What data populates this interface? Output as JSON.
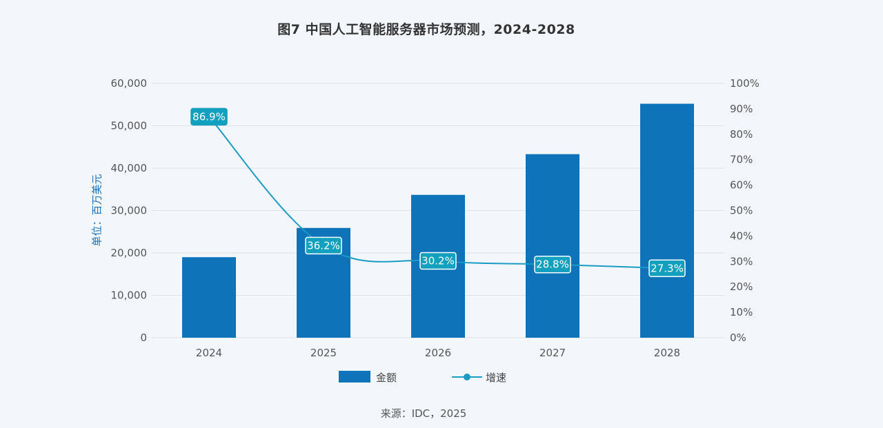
{
  "title": "图7 中国人工智能服务器市场预测，2024-2028",
  "source": "来源：IDC，2025",
  "colors": {
    "bar": "#0f73ba",
    "line": "#1a9bc4",
    "label_bg": "#139fbe",
    "grid": "#dde2ea"
  },
  "chart_data": {
    "type": "bar",
    "categories": [
      "2024",
      "2025",
      "2026",
      "2027",
      "2028"
    ],
    "series": [
      {
        "name": "金额",
        "type": "bar",
        "axis": "left",
        "values": [
          19000,
          25900,
          33700,
          43300,
          55200
        ]
      },
      {
        "name": "增速",
        "type": "line",
        "axis": "right",
        "values": [
          86.9,
          36.2,
          30.2,
          28.8,
          27.3
        ],
        "labels": [
          "86.9%",
          "36.2%",
          "30.2%",
          "28.8%",
          "27.3%"
        ]
      }
    ],
    "ylabel": "单位：百万美元",
    "ylim": [
      0,
      60000
    ],
    "y_ticks": [
      "0",
      "10,000",
      "20,000",
      "30,000",
      "40,000",
      "50,000",
      "60,000"
    ],
    "y2lim": [
      0,
      100
    ],
    "y2_ticks": [
      "0%",
      "10%",
      "20%",
      "30%",
      "40%",
      "50%",
      "60%",
      "70%",
      "80%",
      "90%",
      "100%"
    ],
    "grid": true,
    "legend_position": "bottom"
  }
}
